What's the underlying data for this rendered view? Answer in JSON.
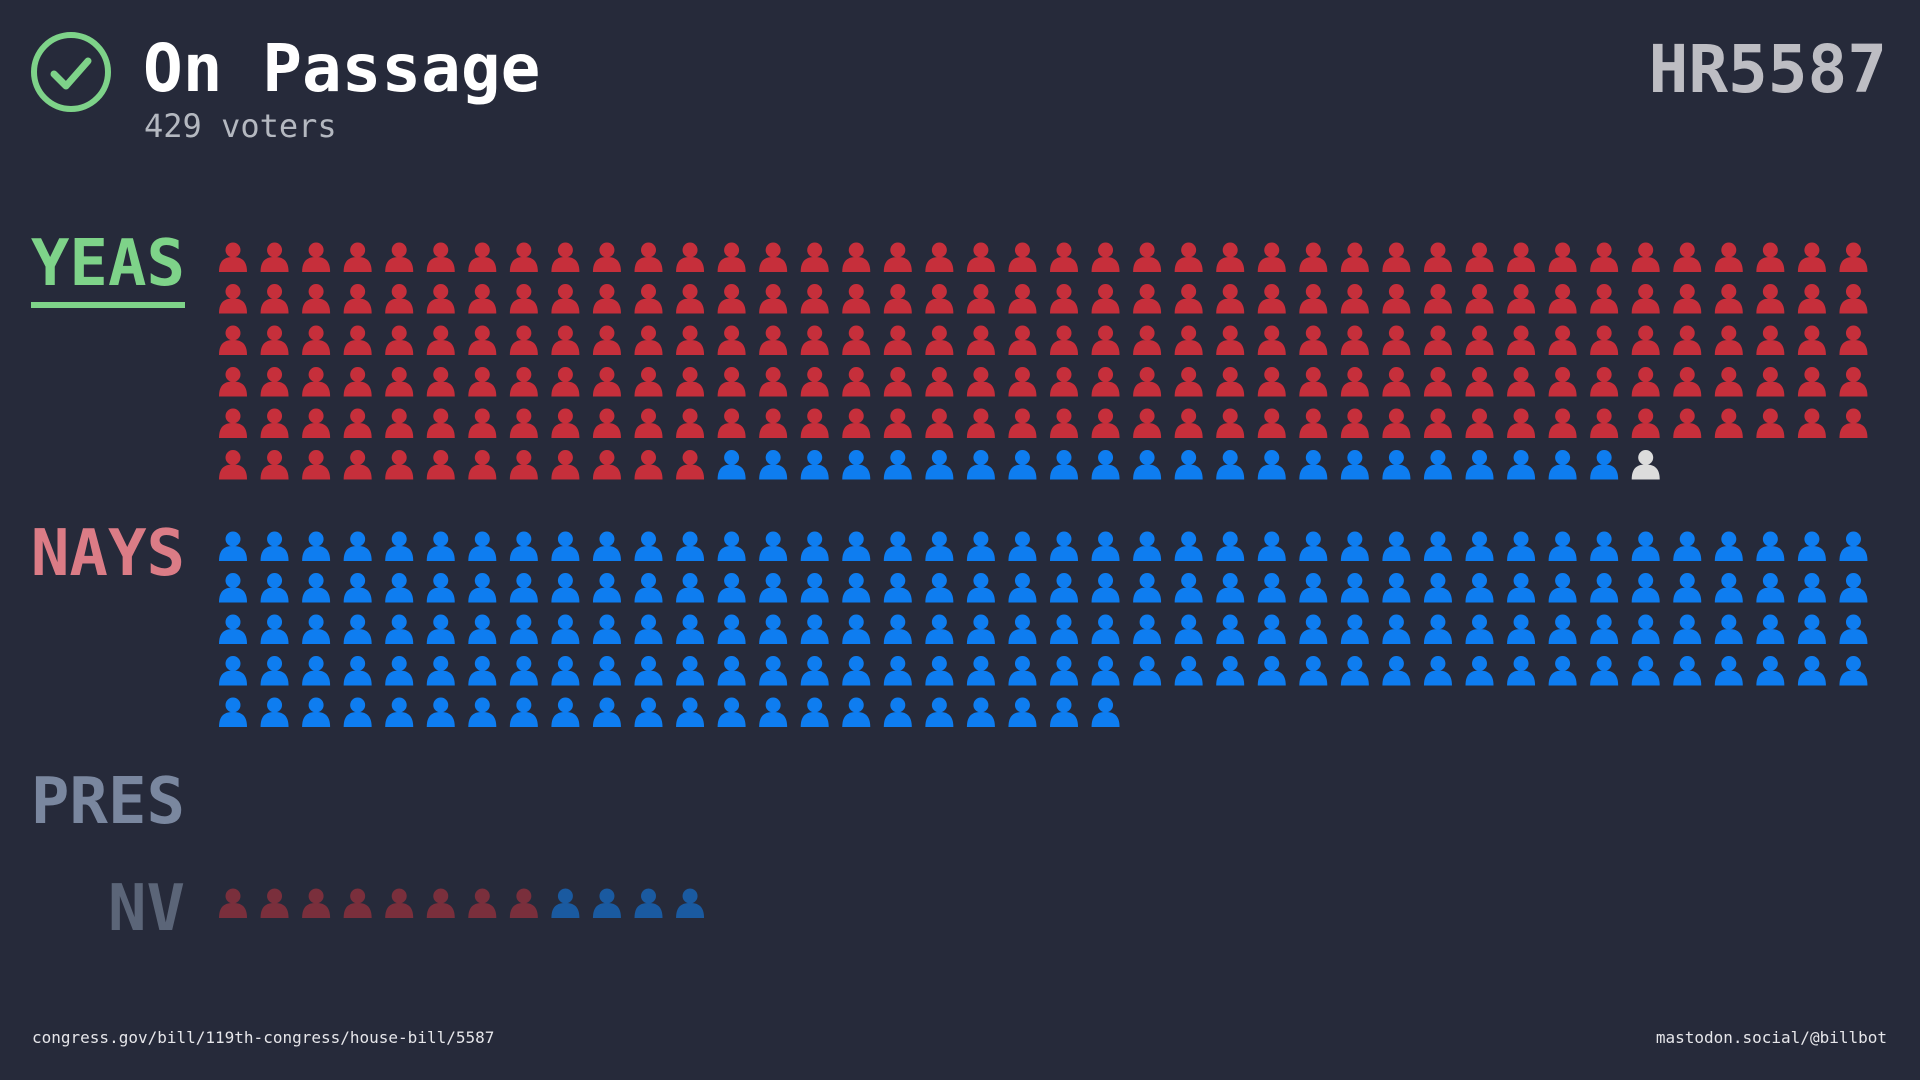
{
  "header": {
    "title": "On Passage",
    "subtitle": "429 voters",
    "bill_id": "HR5587",
    "icon": "check-circle-icon",
    "icon_color": "#7ed389"
  },
  "colors": {
    "background": "#262a3a",
    "republican": "#c62f3b",
    "democrat": "#0e7df0",
    "independent": "#dcdcdc",
    "republican_nv": "#7a2f3c",
    "democrat_nv": "#1a5aa0"
  },
  "chart_data": {
    "type": "waffle",
    "total_voters": 429,
    "categories": [
      {
        "key": "yeas",
        "label": "YEAS",
        "color": "#7ed389",
        "underlined": true,
        "republican": 212,
        "democrat": 22,
        "independent": 1
      },
      {
        "key": "nays",
        "label": "NAYS",
        "color": "#db7c86",
        "underlined": false,
        "republican": 0,
        "democrat": 182,
        "independent": 0
      },
      {
        "key": "pres",
        "label": "PRES",
        "color": "#7a879f",
        "underlined": false,
        "republican": 0,
        "democrat": 0,
        "independent": 0
      },
      {
        "key": "nv",
        "label": "NV",
        "color": "#5b6578",
        "underlined": false,
        "republican": 8,
        "democrat": 4,
        "independent": 0
      }
    ],
    "icons_per_row": 40
  },
  "footer": {
    "left": "congress.gov/bill/119th-congress/house-bill/5587",
    "right": "mastodon.social/@billbot"
  }
}
